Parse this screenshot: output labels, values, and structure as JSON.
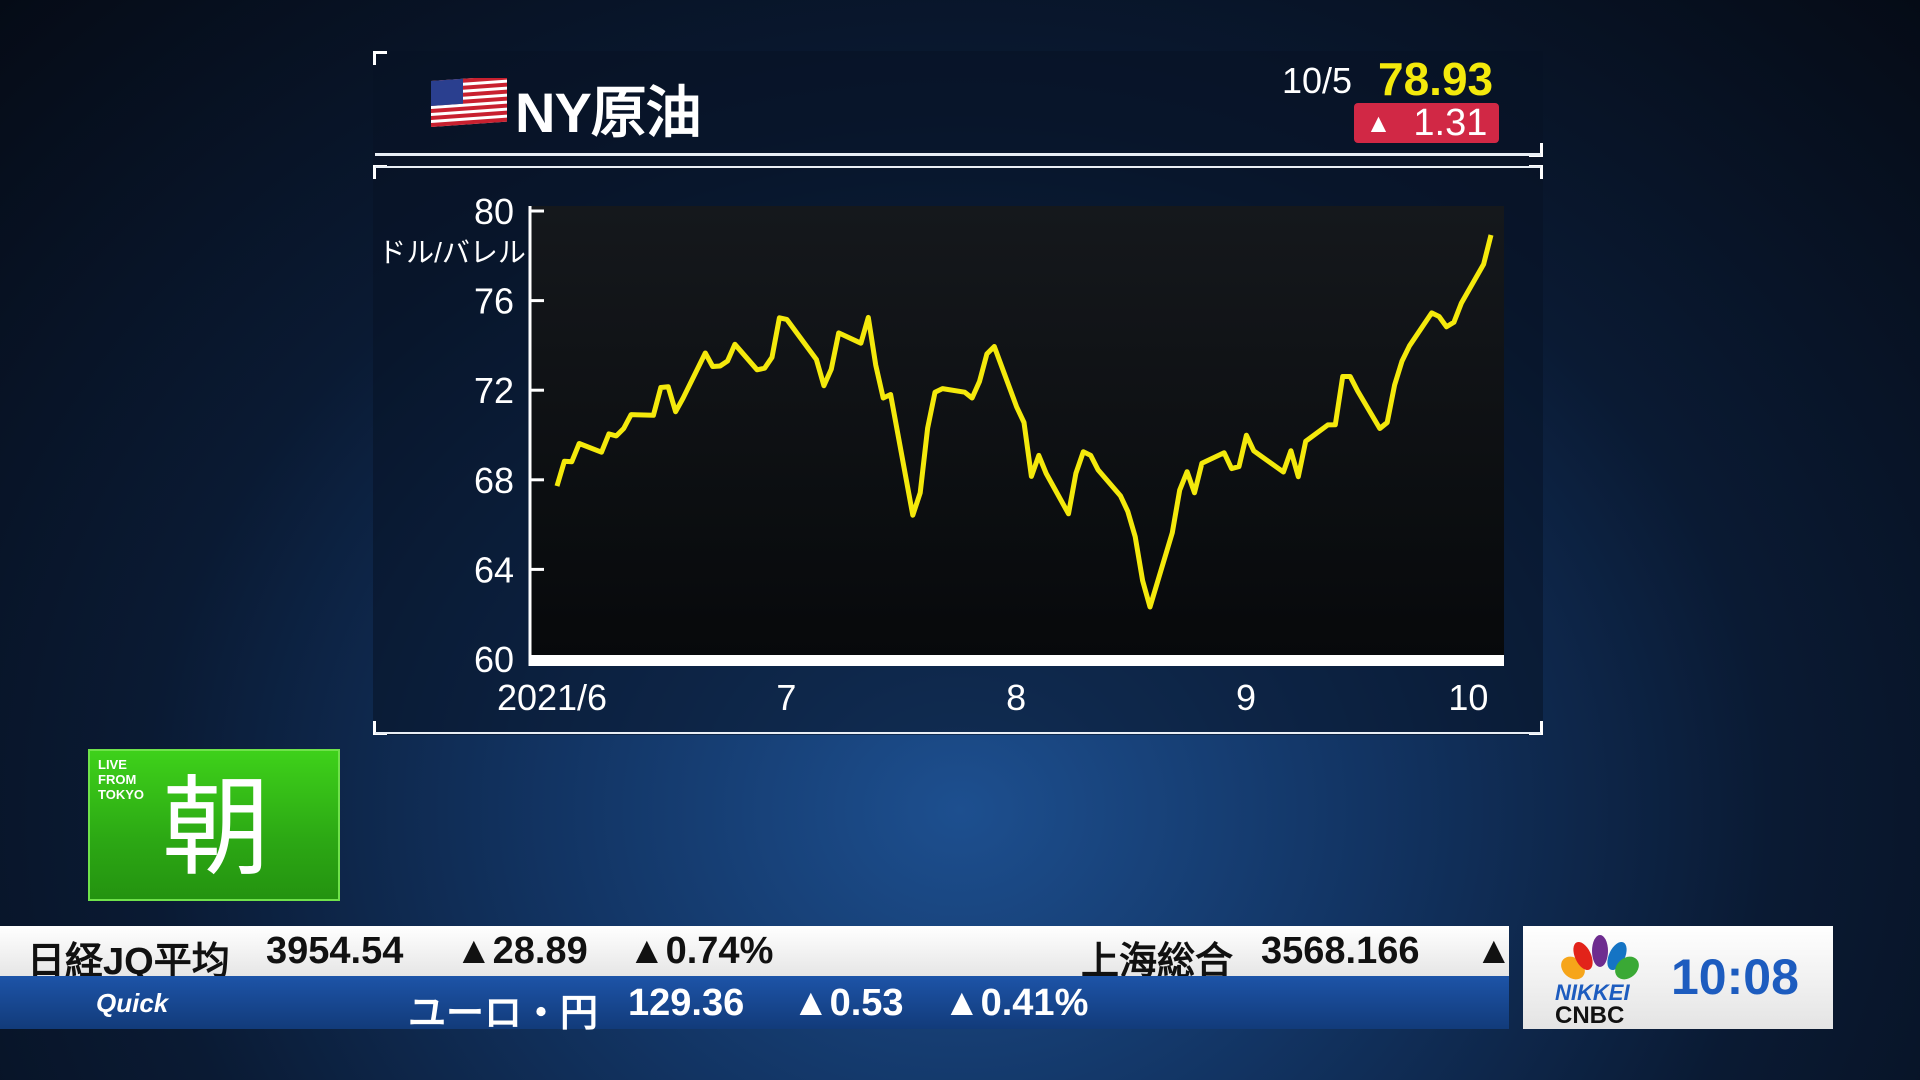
{
  "header": {
    "title": "NY原油",
    "date": "10/5",
    "price": "78.93",
    "change": "1.31",
    "change_arrow": "▲",
    "flag_icon": "us-flag-icon"
  },
  "chart_data": {
    "type": "line",
    "unit_label": "ドル/バレル",
    "ylim": [
      60,
      80
    ],
    "yticks": [
      "60",
      "64",
      "68",
      "72",
      "76",
      "80"
    ],
    "xtick_labels": [
      {
        "date": "2021-06-01",
        "label": "2021/6"
      },
      {
        "date": "2021-07-01",
        "label": "7"
      },
      {
        "date": "2021-08-01",
        "label": "8"
      },
      {
        "date": "2021-09-01",
        "label": "9"
      },
      {
        "date": "2021-10-01",
        "label": "10"
      }
    ],
    "xlim": [
      "2021-06-01",
      "2021-10-05"
    ],
    "line_color": "#f4e90c",
    "grid": false,
    "x": [
      "2021-06-01",
      "2021-06-02",
      "2021-06-03",
      "2021-06-04",
      "2021-06-07",
      "2021-06-08",
      "2021-06-09",
      "2021-06-10",
      "2021-06-11",
      "2021-06-14",
      "2021-06-15",
      "2021-06-16",
      "2021-06-17",
      "2021-06-18",
      "2021-06-21",
      "2021-06-22",
      "2021-06-23",
      "2021-06-24",
      "2021-06-25",
      "2021-06-28",
      "2021-06-29",
      "2021-06-30",
      "2021-07-01",
      "2021-07-02",
      "2021-07-06",
      "2021-07-07",
      "2021-07-08",
      "2021-07-09",
      "2021-07-12",
      "2021-07-13",
      "2021-07-14",
      "2021-07-15",
      "2021-07-16",
      "2021-07-19",
      "2021-07-20",
      "2021-07-21",
      "2021-07-22",
      "2021-07-23",
      "2021-07-26",
      "2021-07-27",
      "2021-07-28",
      "2021-07-29",
      "2021-07-30",
      "2021-08-02",
      "2021-08-03",
      "2021-08-04",
      "2021-08-05",
      "2021-08-06",
      "2021-08-09",
      "2021-08-10",
      "2021-08-11",
      "2021-08-12",
      "2021-08-13",
      "2021-08-16",
      "2021-08-17",
      "2021-08-18",
      "2021-08-19",
      "2021-08-20",
      "2021-08-23",
      "2021-08-24",
      "2021-08-25",
      "2021-08-26",
      "2021-08-27",
      "2021-08-30",
      "2021-08-31",
      "2021-09-01",
      "2021-09-02",
      "2021-09-03",
      "2021-09-07",
      "2021-09-08",
      "2021-09-09",
      "2021-09-10",
      "2021-09-13",
      "2021-09-14",
      "2021-09-15",
      "2021-09-16",
      "2021-09-17",
      "2021-09-20",
      "2021-09-21",
      "2021-09-22",
      "2021-09-23",
      "2021-09-24",
      "2021-09-27",
      "2021-09-28",
      "2021-09-29",
      "2021-09-30",
      "2021-10-01",
      "2021-10-04",
      "2021-10-05"
    ],
    "y": [
      67.72,
      68.83,
      68.81,
      69.62,
      69.23,
      70.05,
      69.96,
      70.29,
      70.91,
      70.88,
      72.12,
      72.15,
      71.04,
      71.64,
      73.66,
      73.06,
      73.08,
      73.3,
      74.05,
      72.91,
      72.98,
      73.47,
      75.23,
      75.16,
      73.37,
      72.2,
      72.94,
      74.56,
      74.1,
      75.25,
      73.13,
      71.65,
      71.81,
      66.42,
      67.42,
      70.3,
      71.91,
      72.07,
      71.91,
      71.65,
      72.39,
      73.62,
      73.95,
      71.26,
      70.56,
      68.15,
      69.09,
      68.28,
      66.48,
      68.29,
      69.25,
      69.09,
      68.44,
      67.29,
      66.59,
      65.46,
      63.5,
      62.32,
      65.64,
      67.54,
      68.36,
      67.42,
      68.74,
      69.21,
      68.5,
      68.59,
      69.99,
      69.29,
      68.35,
      69.3,
      68.14,
      69.72,
      70.45,
      70.46,
      72.61,
      72.61,
      71.97,
      70.29,
      70.56,
      72.23,
      73.3,
      73.98,
      75.45,
      75.29,
      74.83,
      75.03,
      75.88,
      77.62,
      78.93
    ]
  },
  "badge": {
    "live_lines": [
      "LIVE",
      "FROM",
      "TOKYO"
    ],
    "kanji": "朝"
  },
  "ticker": {
    "row1": {
      "name": "日経JQ平均",
      "value": "3954.54",
      "change": "▲28.89",
      "pct": "▲0.74%",
      "name2": "上海総合",
      "value2": "3568.166",
      "change2": "▲"
    },
    "row2": {
      "source": "Quick",
      "name": "ユーロ・円",
      "value": "129.36",
      "change": "▲0.53",
      "pct": "▲0.41%"
    }
  },
  "network": {
    "logo_text1": "NIKKEI",
    "logo_text2": "CNBC",
    "time": "10:08"
  }
}
